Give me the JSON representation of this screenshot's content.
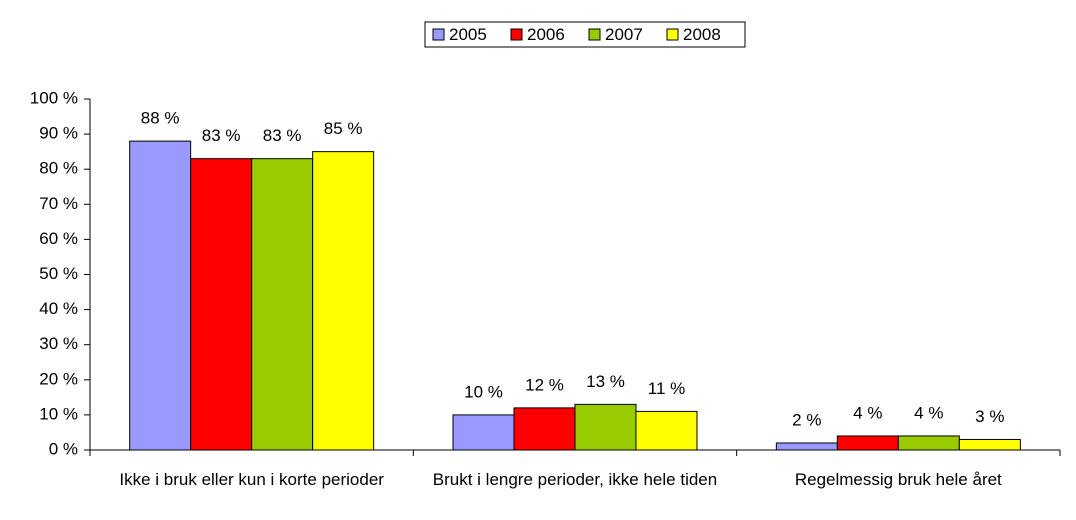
{
  "chart_data": {
    "type": "bar",
    "categories": [
      "Ikke i bruk eller kun i korte perioder",
      "Brukt i lengre perioder, ikke hele tiden",
      "Regelmessig bruk hele året"
    ],
    "series": [
      {
        "name": "2005",
        "color": "#9999ff",
        "values": [
          88,
          10,
          2
        ],
        "value_labels": [
          "88 %",
          "10 %",
          "2 %"
        ]
      },
      {
        "name": "2006",
        "color": "#ff0000",
        "values": [
          83,
          12,
          4
        ],
        "value_labels": [
          "83 %",
          "12 %",
          "4 %"
        ]
      },
      {
        "name": "2007",
        "color": "#99cc00",
        "values": [
          83,
          13,
          4
        ],
        "value_labels": [
          "83 %",
          "13 %",
          "4 %"
        ]
      },
      {
        "name": "2008",
        "color": "#ffff00",
        "values": [
          85,
          11,
          3
        ],
        "value_labels": [
          "85 %",
          "11 %",
          "3 %"
        ]
      }
    ],
    "ylim": [
      0,
      100
    ],
    "yticks": [
      {
        "value": 0,
        "label": "0 %"
      },
      {
        "value": 10,
        "label": "10 %"
      },
      {
        "value": 20,
        "label": "20 %"
      },
      {
        "value": 30,
        "label": "30 %"
      },
      {
        "value": 40,
        "label": "40 %"
      },
      {
        "value": 50,
        "label": "50 %"
      },
      {
        "value": 60,
        "label": "60 %"
      },
      {
        "value": 70,
        "label": "70 %"
      },
      {
        "value": 80,
        "label": "80 %"
      },
      {
        "value": 90,
        "label": "90 %"
      },
      {
        "value": 100,
        "label": "100 %"
      }
    ],
    "legend": "top",
    "grid": false
  }
}
